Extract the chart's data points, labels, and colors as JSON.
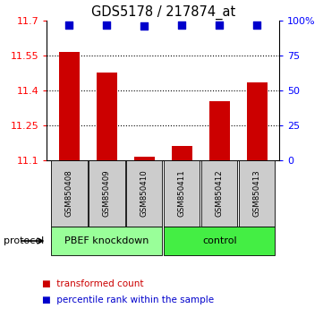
{
  "title": "GDS5178 / 217874_at",
  "samples": [
    "GSM850408",
    "GSM850409",
    "GSM850410",
    "GSM850411",
    "GSM850412",
    "GSM850413"
  ],
  "transformed_counts": [
    11.565,
    11.475,
    11.115,
    11.16,
    11.355,
    11.435
  ],
  "percentile_ranks": [
    97,
    97,
    96,
    97,
    97,
    97
  ],
  "ylim_left": [
    11.1,
    11.7
  ],
  "ylim_right": [
    0,
    100
  ],
  "yticks_left": [
    11.1,
    11.25,
    11.4,
    11.55,
    11.7
  ],
  "yticks_right": [
    0,
    25,
    50,
    75,
    100
  ],
  "bar_color": "#cc0000",
  "dot_color": "#0000cc",
  "groups": [
    {
      "label": "PBEF knockdown",
      "indices": [
        0,
        1,
        2
      ],
      "color": "#99ff99"
    },
    {
      "label": "control",
      "indices": [
        3,
        4,
        5
      ],
      "color": "#44ee44"
    }
  ],
  "protocol_label": "protocol",
  "legend_items": [
    {
      "color": "#cc0000",
      "label": "transformed count"
    },
    {
      "color": "#0000cc",
      "label": "percentile rank within the sample"
    }
  ],
  "bar_width": 0.55,
  "dot_size": 30,
  "sample_box_color": "#cccccc",
  "title_fontsize": 10.5,
  "tick_fontsize": 8,
  "legend_fontsize": 7.5
}
